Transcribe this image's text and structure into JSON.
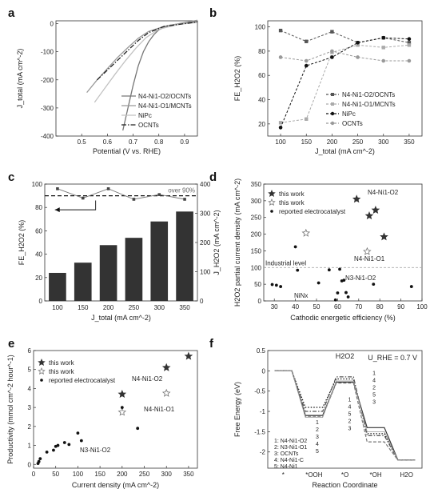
{
  "chart_data": [
    {
      "panel": "a",
      "type": "line",
      "xlabel": "Potential (V vs. RHE)",
      "ylabel": "J_total (mA cm^-2)",
      "xlim": [
        0.4,
        0.95
      ],
      "ylim": [
        -400,
        10
      ],
      "xticks": [
        0.5,
        0.6,
        0.7,
        0.8,
        0.9
      ],
      "yticks": [
        0,
        -100,
        -200,
        -300,
        -400
      ],
      "legend_position": "bottom-right",
      "series": [
        {
          "name": "N4-Ni1-O2/OCNTs",
          "color": "#777777",
          "style": "solid",
          "points": [
            [
              0.66,
              -380
            ],
            [
              0.68,
              -300
            ],
            [
              0.7,
              -220
            ],
            [
              0.72,
              -150
            ],
            [
              0.74,
              -100
            ],
            [
              0.76,
              -65
            ],
            [
              0.78,
              -40
            ],
            [
              0.8,
              -22
            ],
            [
              0.84,
              -6
            ],
            [
              0.95,
              8
            ]
          ]
        },
        {
          "name": "N4-Ni1-O1/MCNTs",
          "color": "#999999",
          "style": "solid",
          "points": [
            [
              0.52,
              -245
            ],
            [
              0.56,
              -200
            ],
            [
              0.6,
              -160
            ],
            [
              0.64,
              -120
            ],
            [
              0.68,
              -85
            ],
            [
              0.72,
              -52
            ],
            [
              0.76,
              -28
            ],
            [
              0.82,
              -10
            ],
            [
              0.95,
              12
            ]
          ]
        },
        {
          "name": "NiPc",
          "color": "#c2c2c2",
          "style": "solid",
          "points": [
            [
              0.55,
              -280
            ],
            [
              0.59,
              -230
            ],
            [
              0.63,
              -180
            ],
            [
              0.67,
              -132
            ],
            [
              0.71,
              -88
            ],
            [
              0.75,
              -50
            ],
            [
              0.8,
              -20
            ],
            [
              0.88,
              -2
            ],
            [
              0.95,
              4
            ]
          ]
        },
        {
          "name": "OCNTs",
          "color": "#222222",
          "style": "dashdot",
          "points": [
            [
              0.56,
              -200
            ],
            [
              0.6,
              -165
            ],
            [
              0.64,
              -130
            ],
            [
              0.68,
              -95
            ],
            [
              0.72,
              -60
            ],
            [
              0.76,
              -32
            ],
            [
              0.82,
              -10
            ],
            [
              0.95,
              6
            ]
          ]
        }
      ]
    },
    {
      "panel": "b",
      "type": "line",
      "xlabel": "J_total (mA cm^-2)",
      "ylabel": "FE_H2O2 (%)",
      "xlim": [
        75,
        375
      ],
      "ylim": [
        10,
        105
      ],
      "xticks": [
        100,
        150,
        200,
        250,
        300,
        350
      ],
      "yticks": [
        20,
        40,
        60,
        80,
        100
      ],
      "legend_position": "bottom-right",
      "series": [
        {
          "name": "N4-Ni1-O2/OCNTs",
          "color": "#555555",
          "marker": "square",
          "x": [
            100,
            150,
            200,
            250,
            300,
            350
          ],
          "values": [
            97,
            88,
            96,
            87,
            91,
            87
          ]
        },
        {
          "name": "N4-Ni1-O1/MCNTs",
          "color": "#aaaaaa",
          "marker": "square",
          "x": [
            100,
            150,
            200,
            250,
            300,
            350
          ],
          "values": [
            21,
            24,
            79,
            85,
            83,
            85
          ]
        },
        {
          "name": "NiPc",
          "color": "#111111",
          "marker": "circle",
          "x": [
            100,
            150,
            200,
            250,
            300,
            350
          ],
          "values": [
            17,
            68,
            75,
            87,
            91,
            90
          ]
        },
        {
          "name": "OCNTs",
          "color": "#999999",
          "marker": "circle",
          "x": [
            100,
            150,
            200,
            250,
            300,
            350
          ],
          "values": [
            75,
            72,
            80,
            75,
            72,
            72
          ]
        }
      ]
    },
    {
      "panel": "c",
      "type": "bar",
      "xlabel": "J_total (mA cm^-2)",
      "ylabel_left": "FE_H2O2 (%)",
      "ylabel_right": "J_H2O2 (mA cm^-2)",
      "ylim_left": [
        0,
        100
      ],
      "ylim_right": [
        0,
        400
      ],
      "yticks_left": [
        0,
        20,
        40,
        60,
        80,
        100
      ],
      "yticks_right": [
        0,
        100,
        200,
        300,
        400
      ],
      "categories": [
        "100",
        "150",
        "200",
        "250",
        "300",
        "350"
      ],
      "bar_values": [
        96,
        131,
        191,
        216,
        272,
        306
      ],
      "fe_values": [
        96,
        88,
        96,
        87,
        91,
        87
      ],
      "reference_line": 90,
      "annotation": "over 90%"
    },
    {
      "panel": "d",
      "type": "scatter",
      "xlabel": "Cathodic energetic efficiency (%)",
      "ylabel": "H2O2 partial current density (mA cm^-2)",
      "xlim": [
        25,
        100
      ],
      "ylim": [
        0,
        350
      ],
      "xticks": [
        30,
        40,
        50,
        60,
        70,
        80,
        90,
        100
      ],
      "yticks": [
        0,
        50,
        100,
        150,
        200,
        250,
        300,
        350
      ],
      "reference_line": 100,
      "reference_label": "Industrial level",
      "legend_position": "top-left",
      "annotations": [
        "N4-Ni1-O2",
        "N4-Ni1-O1",
        "N3-Ni1-O2",
        "NiNx"
      ],
      "series": [
        {
          "name": "this work",
          "marker": "star-filled",
          "points": [
            [
              69,
              305
            ],
            [
              75,
              255
            ],
            [
              78,
              272
            ],
            [
              82,
              192
            ]
          ]
        },
        {
          "name": "this work",
          "marker": "star-open",
          "points": [
            [
              45,
              203
            ],
            [
              74,
              148
            ]
          ]
        },
        {
          "name": "reported electrocatalyst",
          "marker": "dot",
          "points": [
            [
              29,
              49
            ],
            [
              31,
              47
            ],
            [
              33,
              43
            ],
            [
              40,
              162
            ],
            [
              41,
              92
            ],
            [
              51,
              54
            ],
            [
              56,
              93
            ],
            [
              59,
              3
            ],
            [
              60,
              24
            ],
            [
              61,
              95
            ],
            [
              62,
              60
            ],
            [
              63,
              62
            ],
            [
              64,
              25
            ],
            [
              65,
              12
            ],
            [
              77,
              50
            ],
            [
              95,
              43
            ]
          ]
        }
      ]
    },
    {
      "panel": "e",
      "type": "scatter",
      "xlabel": "Current density (mA cm^-2)",
      "ylabel": "Productivity (mmol cm^-2 hour^-1)",
      "xlim": [
        0,
        370
      ],
      "ylim": [
        -0.2,
        6
      ],
      "xticks": [
        0,
        50,
        100,
        150,
        200,
        250,
        300,
        350
      ],
      "yticks": [
        0,
        1,
        2,
        3,
        4,
        5,
        6
      ],
      "legend_position": "top-left",
      "annotations": [
        "N4-Ni1-O2",
        "N4-Ni1-O1",
        "N3-Ni1-O2"
      ],
      "series": [
        {
          "name": "this work",
          "marker": "star-filled",
          "points": [
            [
              200,
              3.7
            ],
            [
              300,
              5.1
            ],
            [
              350,
              5.7
            ]
          ]
        },
        {
          "name": "this work",
          "marker": "star-open",
          "points": [
            [
              200,
              2.75
            ],
            [
              300,
              3.75
            ]
          ]
        },
        {
          "name": "reported electrocatalyst",
          "marker": "dot",
          "points": [
            [
              10,
              0.05
            ],
            [
              12,
              0.15
            ],
            [
              15,
              0.3
            ],
            [
              30,
              0.65
            ],
            [
              45,
              0.75
            ],
            [
              50,
              0.95
            ],
            [
              55,
              1.0
            ],
            [
              70,
              1.15
            ],
            [
              80,
              1.05
            ],
            [
              100,
              1.65
            ],
            [
              108,
              1.25
            ],
            [
              200,
              3.0
            ],
            [
              235,
              1.9
            ]
          ]
        }
      ]
    },
    {
      "panel": "f",
      "type": "line",
      "xlabel": "Reaction Coordinate",
      "ylabel": "Free Energy (eV)",
      "condition": "U_RHE = 0.7 V",
      "species_top": "H2O2",
      "ylim": [
        -2.4,
        0.5
      ],
      "yticks": [
        0.5,
        0.0,
        -0.5,
        -1.0,
        -1.5,
        -2.0
      ],
      "categories": [
        "*",
        "*OOH",
        "*O",
        "*OH",
        "H2O"
      ],
      "legend_position": "bottom-left",
      "series": [
        {
          "name": "1: N4-Ni1-O2",
          "style": "dotted",
          "values": [
            0,
            -0.9,
            -0.2,
            -1.55,
            -2.2
          ]
        },
        {
          "name": "2: N3-Ni1-O1",
          "style": "dashdot",
          "values": [
            0,
            -1.0,
            -0.15,
            -1.6,
            -2.2
          ]
        },
        {
          "name": "3: OCNTs",
          "style": "solid",
          "values": [
            0,
            -1.1,
            -0.28,
            -1.4,
            -2.2
          ]
        },
        {
          "name": "4: N4-Ni1-C",
          "style": "dashed",
          "values": [
            0,
            -1.12,
            -0.3,
            -1.75,
            -2.2
          ]
        },
        {
          "name": "5: N4-Ni1",
          "style": "solid-thin",
          "values": [
            0,
            -1.15,
            -0.25,
            -1.5,
            -2.2
          ]
        }
      ],
      "cluster_labels_ooh": [
        "1",
        "2",
        "3",
        "4",
        "5"
      ],
      "cluster_labels_o": [
        "1",
        "4",
        "5",
        "2",
        "3"
      ],
      "cluster_labels_oh": [
        "1",
        "4",
        "2",
        "5",
        "3"
      ]
    }
  ],
  "panel_labels": [
    "a",
    "b",
    "c",
    "d",
    "e",
    "f"
  ]
}
